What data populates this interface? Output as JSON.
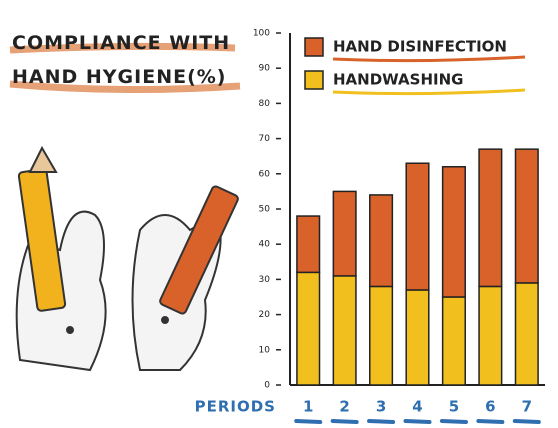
{
  "chart_data": {
    "type": "stacked-bar",
    "title": "COMPLIANCE WITH HAND HYGIENE(%)",
    "x_label": "PERIODS",
    "categories": [
      "1",
      "2",
      "3",
      "4",
      "5",
      "6",
      "7"
    ],
    "series": [
      {
        "name": "HAND DISINFECTION",
        "color": "#d9622b",
        "values": [
          16,
          24,
          26,
          36,
          37,
          39,
          38
        ]
      },
      {
        "name": "HANDWASHING",
        "color": "#f2c01e",
        "values": [
          32,
          31,
          28,
          27,
          25,
          28,
          29
        ]
      }
    ],
    "ylim": [
      0,
      100
    ],
    "yticks": [
      0,
      10,
      20,
      30,
      40,
      50,
      60,
      70,
      80,
      90,
      100
    ],
    "grid": false
  }
}
